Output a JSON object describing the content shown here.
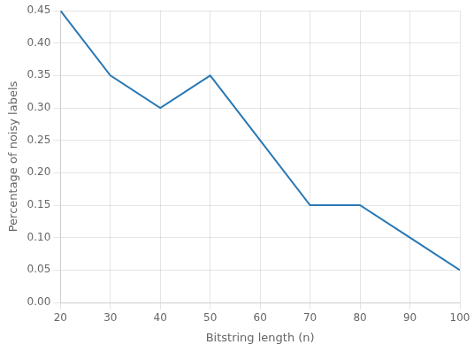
{
  "chart_data": {
    "type": "line",
    "x": [
      20,
      30,
      40,
      50,
      60,
      70,
      80,
      90,
      100
    ],
    "values": [
      0.45,
      0.35,
      0.3,
      0.35,
      0.25,
      0.15,
      0.15,
      0.1,
      0.05
    ],
    "color": "#2878b5",
    "xlabel": "Bitstring length (n)",
    "ylabel": "Percentage of noisy labels",
    "xlim": [
      20,
      100
    ],
    "ylim": [
      0.0,
      0.45
    ],
    "xticks": [
      20,
      30,
      40,
      50,
      60,
      70,
      80,
      90,
      100
    ],
    "yticks": [
      {
        "value": 0.0,
        "label": "0.00"
      },
      {
        "value": 0.05,
        "label": "0.05"
      },
      {
        "value": 0.1,
        "label": "0.10"
      },
      {
        "value": 0.15,
        "label": "0.15"
      },
      {
        "value": 0.2,
        "label": "0.20"
      },
      {
        "value": 0.25,
        "label": "0.25"
      },
      {
        "value": 0.3,
        "label": "0.30"
      },
      {
        "value": 0.35,
        "label": "0.35"
      },
      {
        "value": 0.4,
        "label": "0.40"
      },
      {
        "value": 0.45,
        "label": "0.45"
      }
    ],
    "grid": true
  }
}
